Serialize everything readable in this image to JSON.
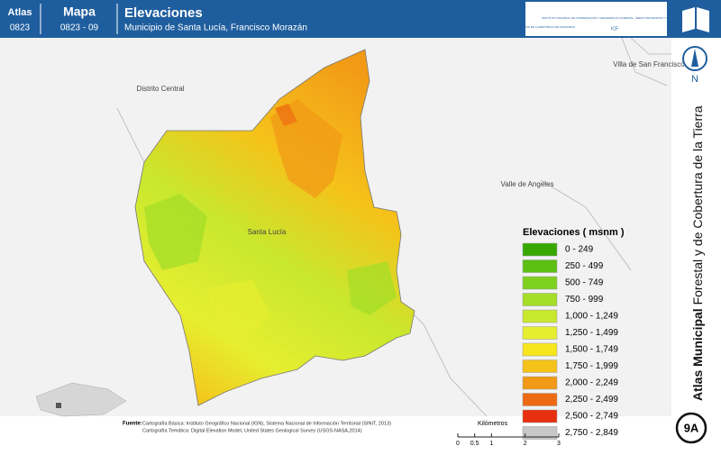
{
  "header": {
    "atlas_label": "Atlas",
    "atlas_code": "0823",
    "map_label": "Mapa",
    "map_code": "0823 - 09",
    "title": "Elevaciones",
    "subtitle": "Municipio de Santa Lucía, Francisco Morazán",
    "logo_left": "GOBIERNO DE LA REPÚBLICA DE HONDURAS",
    "logo_right": "INSTITUTO NACIONAL DE CONSERVACIÓN Y DESARROLLO FORESTAL, ÁREAS PROTEGIDAS Y VIDA SILVESTRE",
    "logo_acronym": "ICF"
  },
  "sidebar": {
    "title_bold": "Atlas Municipal",
    "title_rest": "Forestal y de Cobertura de la Tierra",
    "north": "N",
    "sheet": "9A"
  },
  "places": [
    "Distrito Central",
    "Villa de San Francisco",
    "Valle de Angeles",
    "Santa Lucía"
  ],
  "legend": {
    "title": "Elevaciones ( msnm )",
    "items": [
      {
        "label": "0 - 249",
        "color": "#38a800"
      },
      {
        "label": "250 - 499",
        "color": "#5cbf14"
      },
      {
        "label": "500 - 749",
        "color": "#7fd11f"
      },
      {
        "label": "750 - 999",
        "color": "#a5de28"
      },
      {
        "label": "1,000 - 1,249",
        "color": "#c8e82e"
      },
      {
        "label": "1,250 - 1,499",
        "color": "#e6ee30"
      },
      {
        "label": "1,500 - 1,749",
        "color": "#f7e51e"
      },
      {
        "label": "1,750 - 1,999",
        "color": "#f5c21a"
      },
      {
        "label": "2,000 - 2,249",
        "color": "#f29a16"
      },
      {
        "label": "2,250 - 2,499",
        "color": "#ee6a12"
      },
      {
        "label": "2,500 - 2,749",
        "color": "#e8300e"
      },
      {
        "label": "2,750 - 2,849",
        "color": "#c8c8c8"
      }
    ]
  },
  "scale_bar": {
    "ticks": [
      0,
      0.5,
      1,
      2,
      3
    ],
    "unit": "Kilómetros"
  },
  "source": {
    "label": "Fuente:",
    "lines": [
      "Cartografía Básica: Instituto Geográfico Nacional (IGN), Sistema Nacional de Información Territorial (SINIT, 2013)",
      "Cartografía Temática: Digital Elevation Model, United States Geological Survey (USGS-NASA,2014)"
    ]
  }
}
